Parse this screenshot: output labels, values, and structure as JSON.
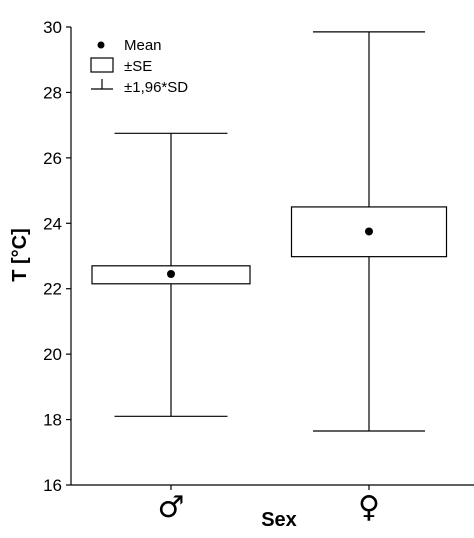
{
  "chart_data": {
    "type": "box",
    "xlabel": "Sex",
    "ylabel": "T [°C]",
    "ylim": [
      16,
      30
    ],
    "yticks": [
      16,
      18,
      20,
      22,
      24,
      26,
      28,
      30
    ],
    "categories": [
      "♂",
      "♀"
    ],
    "series": [
      {
        "category": "♂",
        "mean": 22.45,
        "se_low": 22.15,
        "se_high": 22.7,
        "whisker_low": 18.1,
        "whisker_high": 26.75
      },
      {
        "category": "♀",
        "mean": 23.75,
        "se_low": 22.98,
        "se_high": 24.5,
        "whisker_low": 17.65,
        "whisker_high": 29.85
      }
    ],
    "legend": {
      "position": "top-left",
      "items": [
        {
          "symbol": "dot",
          "label": "Mean"
        },
        {
          "symbol": "box",
          "label": "±SE"
        },
        {
          "symbol": "whisker",
          "label": "±1,96*SD"
        }
      ]
    },
    "grid": false
  }
}
